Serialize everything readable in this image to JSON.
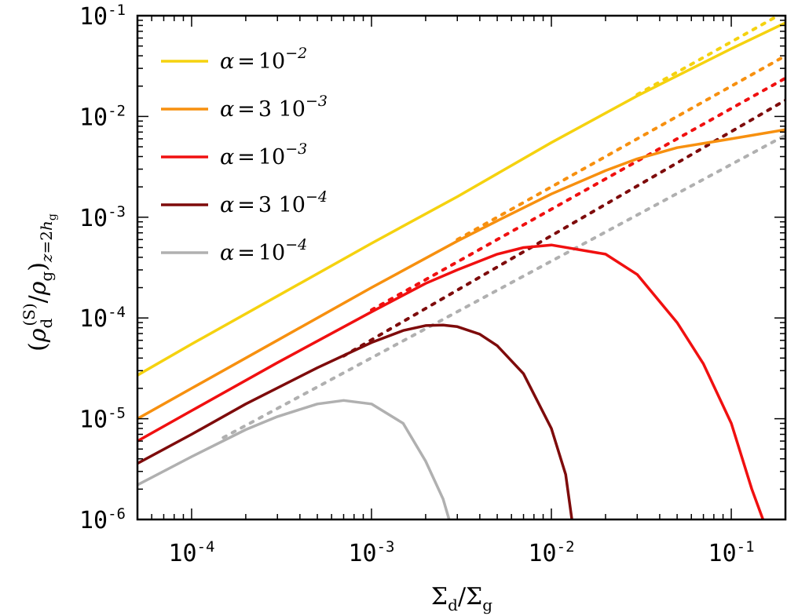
{
  "chart_data": {
    "type": "line",
    "xscale": "log",
    "yscale": "log",
    "xlim": [
      5e-05,
      0.2
    ],
    "ylim": [
      1e-06,
      0.1
    ],
    "xlabel": "Σd/Σg",
    "ylabel": "(ρd(S)/ρg)z=2hg",
    "x_ticks": [
      {
        "base": "10",
        "exp": "-4"
      },
      {
        "base": "10",
        "exp": "-3"
      },
      {
        "base": "10",
        "exp": "-2"
      },
      {
        "base": "10",
        "exp": "-1"
      }
    ],
    "y_ticks": [
      {
        "base": "10",
        "exp": "-6"
      },
      {
        "base": "10",
        "exp": "-5"
      },
      {
        "base": "10",
        "exp": "-4"
      },
      {
        "base": "10",
        "exp": "-3"
      },
      {
        "base": "10",
        "exp": "-2"
      },
      {
        "base": "10",
        "exp": "-1"
      }
    ],
    "grid": false,
    "legend_position": "top-left",
    "series": [
      {
        "name": "α=10^-2",
        "alpha_label": {
          "prefix": "α =",
          "mant": "10",
          "exp": "−2"
        },
        "color": "#f5d20f",
        "x": [
          5e-05,
          0.0001,
          0.0003,
          0.001,
          0.003,
          0.01,
          0.03,
          0.1,
          0.2
        ],
        "y": [
          2.7e-05,
          5.5e-05,
          0.000165,
          0.00055,
          0.0016,
          0.0055,
          0.016,
          0.047,
          0.085
        ],
        "ideal_x": [
          0.03,
          0.2
        ],
        "ideal_y": [
          0.0165,
          0.11
        ]
      },
      {
        "name": "α=3 10^-3",
        "alpha_label": {
          "prefix": "α =",
          "mant": "3 10",
          "exp": "−3"
        },
        "color": "#f7900f",
        "x": [
          5e-05,
          0.0001,
          0.0003,
          0.001,
          0.003,
          0.005,
          0.01,
          0.02,
          0.03,
          0.05,
          0.1,
          0.2
        ],
        "y": [
          1e-05,
          2e-05,
          6e-05,
          0.0002,
          0.00058,
          0.00092,
          0.0017,
          0.0029,
          0.0038,
          0.0049,
          0.006,
          0.0074
        ],
        "ideal_x": [
          0.003,
          0.2
        ],
        "ideal_y": [
          0.0006,
          0.04
        ]
      },
      {
        "name": "α=10^-3",
        "alpha_label": {
          "prefix": "α =",
          "mant": "10",
          "exp": "−3"
        },
        "color": "#f01010",
        "x": [
          5e-05,
          0.0001,
          0.0003,
          0.001,
          0.002,
          0.003,
          0.005,
          0.007,
          0.01,
          0.02,
          0.03,
          0.05,
          0.07,
          0.1,
          0.13,
          0.15
        ],
        "y": [
          6e-06,
          1.2e-05,
          3.6e-05,
          0.000115,
          0.00022,
          0.0003,
          0.00043,
          0.0005,
          0.00053,
          0.00043,
          0.00027,
          9e-05,
          3.5e-05,
          9e-06,
          2e-06,
          1e-06
        ],
        "ideal_x": [
          0.001,
          0.2
        ],
        "ideal_y": [
          0.00012,
          0.024
        ]
      },
      {
        "name": "α=3 10^-4",
        "alpha_label": {
          "prefix": "α =",
          "mant": "3 10",
          "exp": "−4"
        },
        "color": "#7e0b0b",
        "x": [
          5e-05,
          0.0001,
          0.0002,
          0.0005,
          0.001,
          0.0015,
          0.002,
          0.0025,
          0.003,
          0.004,
          0.005,
          0.007,
          0.01,
          0.012,
          0.013
        ],
        "y": [
          3.6e-06,
          7e-06,
          1.4e-05,
          3.2e-05,
          5.7e-05,
          7.5e-05,
          8.4e-05,
          8.5e-05,
          8.2e-05,
          6.9e-05,
          5.3e-05,
          2.8e-05,
          8e-06,
          2.8e-06,
          1e-06
        ],
        "ideal_x": [
          0.0007,
          0.2
        ],
        "ideal_y": [
          4.2e-05,
          0.0145
        ]
      },
      {
        "name": "α=10^-4",
        "alpha_label": {
          "prefix": "α =",
          "mant": "10",
          "exp": "−4"
        },
        "color": "#b0b0b0",
        "x": [
          5e-05,
          0.0001,
          0.0002,
          0.0003,
          0.0005,
          0.0007,
          0.001,
          0.0015,
          0.002,
          0.0025,
          0.0027
        ],
        "y": [
          2.2e-06,
          4.2e-06,
          7.8e-06,
          1.05e-05,
          1.4e-05,
          1.52e-05,
          1.4e-05,
          9e-06,
          3.8e-06,
          1.6e-06,
          1e-06
        ],
        "ideal_x": [
          0.00015,
          0.2
        ],
        "ideal_y": [
          6.5e-06,
          0.0065
        ]
      }
    ]
  }
}
